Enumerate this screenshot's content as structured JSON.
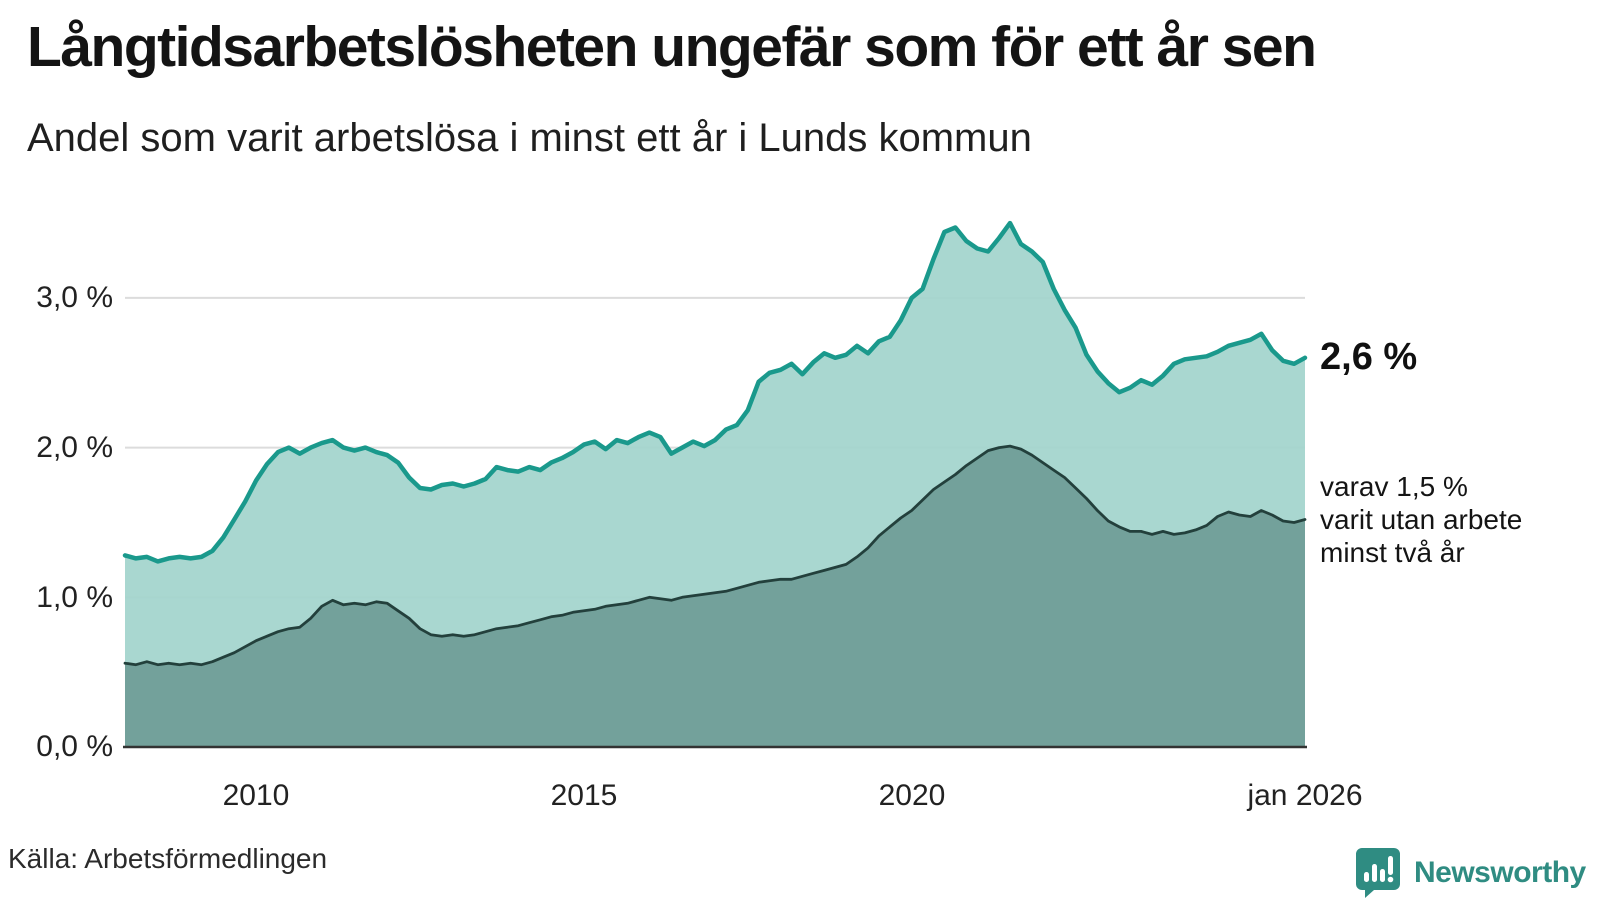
{
  "header": {
    "title": "Långtidsarbetslösheten ungefär som för ett år sen",
    "subtitle": "Andel som varit arbetslösa i minst ett år i Lunds kommun"
  },
  "chart_data": {
    "type": "area",
    "title": "Långtidsarbetslösheten ungefär som för ett år sen",
    "subtitle": "Andel som varit arbetslösa i minst ett år i Lunds kommun",
    "unit": "%",
    "x_start_year": 2008,
    "x_step_months": 2,
    "x_end_label": "jan 2026",
    "ylim": [
      0,
      3.66
    ],
    "grid": "horizontal",
    "x_ticks": [
      {
        "label": "2010",
        "year": 2010
      },
      {
        "label": "2015",
        "year": 2015
      },
      {
        "label": "2020",
        "year": 2020
      },
      {
        "label": "jan 2026",
        "year": 2026
      }
    ],
    "y_ticks": [
      {
        "label": "0,0 %",
        "value": 0.0
      },
      {
        "label": "1,0 %",
        "value": 1.0
      },
      {
        "label": "2,0 %",
        "value": 2.0
      },
      {
        "label": "3,0 %",
        "value": 3.0
      }
    ],
    "series": [
      {
        "name": "Arbetslösa minst ett år",
        "line_color": "#1a998c",
        "fill_color": "#a3d4cc",
        "line_width": 4.5,
        "latest_value": "2,6 %",
        "values": [
          1.28,
          1.26,
          1.27,
          1.24,
          1.26,
          1.27,
          1.26,
          1.27,
          1.31,
          1.4,
          1.52,
          1.64,
          1.78,
          1.89,
          1.97,
          2.0,
          1.96,
          2.0,
          2.03,
          2.05,
          2.0,
          1.98,
          2.0,
          1.97,
          1.95,
          1.9,
          1.8,
          1.73,
          1.72,
          1.75,
          1.76,
          1.74,
          1.76,
          1.79,
          1.87,
          1.85,
          1.84,
          1.87,
          1.85,
          1.9,
          1.93,
          1.97,
          2.02,
          2.04,
          1.99,
          2.05,
          2.03,
          2.07,
          2.1,
          2.07,
          1.96,
          2.0,
          2.04,
          2.01,
          2.05,
          2.12,
          2.15,
          2.25,
          2.44,
          2.5,
          2.52,
          2.56,
          2.49,
          2.57,
          2.63,
          2.6,
          2.62,
          2.68,
          2.63,
          2.71,
          2.74,
          2.85,
          3.0,
          3.06,
          3.26,
          3.44,
          3.47,
          3.38,
          3.33,
          3.31,
          3.4,
          3.5,
          3.36,
          3.31,
          3.24,
          3.06,
          2.92,
          2.8,
          2.62,
          2.51,
          2.43,
          2.37,
          2.4,
          2.45,
          2.42,
          2.48,
          2.56,
          2.59,
          2.6,
          2.61,
          2.64,
          2.68,
          2.7,
          2.72,
          2.76,
          2.65,
          2.58,
          2.56,
          2.6
        ]
      },
      {
        "name": "Varav utan arbete minst två år",
        "line_color": "#23403c",
        "fill_color": "#6f9d97",
        "line_width": 2.8,
        "latest_value": "1,5 %",
        "values": [
          0.56,
          0.55,
          0.57,
          0.55,
          0.56,
          0.55,
          0.56,
          0.55,
          0.57,
          0.6,
          0.63,
          0.67,
          0.71,
          0.74,
          0.77,
          0.79,
          0.8,
          0.86,
          0.94,
          0.98,
          0.95,
          0.96,
          0.95,
          0.97,
          0.96,
          0.91,
          0.86,
          0.79,
          0.75,
          0.74,
          0.75,
          0.74,
          0.75,
          0.77,
          0.79,
          0.8,
          0.81,
          0.83,
          0.85,
          0.87,
          0.88,
          0.9,
          0.91,
          0.92,
          0.94,
          0.95,
          0.96,
          0.98,
          1.0,
          0.99,
          0.98,
          1.0,
          1.01,
          1.02,
          1.03,
          1.04,
          1.06,
          1.08,
          1.1,
          1.11,
          1.12,
          1.12,
          1.14,
          1.16,
          1.18,
          1.2,
          1.22,
          1.27,
          1.33,
          1.41,
          1.47,
          1.53,
          1.58,
          1.65,
          1.72,
          1.77,
          1.82,
          1.88,
          1.93,
          1.98,
          2.0,
          2.01,
          1.99,
          1.95,
          1.9,
          1.85,
          1.8,
          1.73,
          1.66,
          1.58,
          1.51,
          1.47,
          1.44,
          1.44,
          1.42,
          1.44,
          1.42,
          1.43,
          1.45,
          1.48,
          1.54,
          1.57,
          1.55,
          1.54,
          1.58,
          1.55,
          1.51,
          1.5,
          1.52
        ]
      }
    ],
    "annotations": {
      "latest_total": "2,6 %",
      "subset_line1": "varav 1,5 %",
      "subset_line2": "varit utan arbete",
      "subset_line3": "minst två år"
    },
    "colors": {
      "grid": "#dcdcdc",
      "axis": "#333333",
      "accent_teal": "#1a998c",
      "brand_teal": "#2f8c82"
    }
  },
  "footer": {
    "source": "Källa: Arbetsförmedlingen",
    "brand_name": "Newsworthy",
    "brand_icon": "speech-bubble-bar-chart-icon"
  }
}
